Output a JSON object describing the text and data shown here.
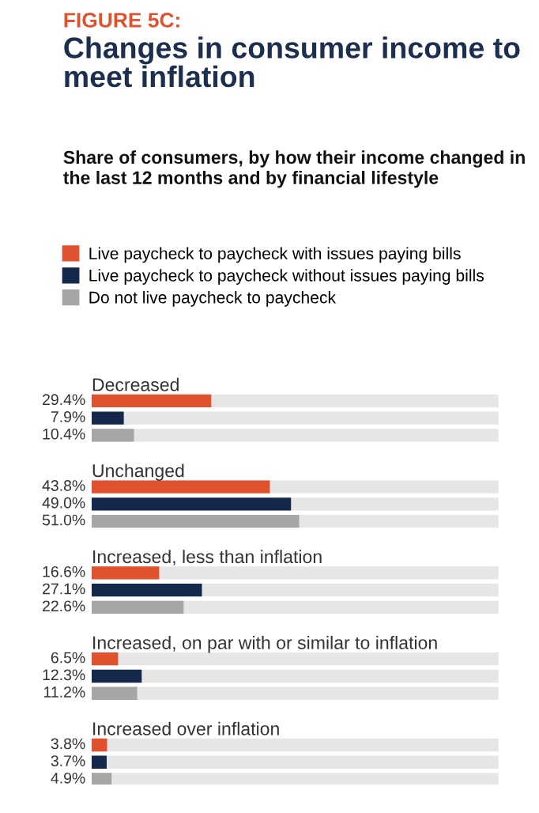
{
  "chart_data": {
    "type": "bar",
    "orientation": "horizontal",
    "title": "Changes in consumer income to meet inflation",
    "subtitle": "Share of consumers, by how their income changed in the last 12 months and by financial lifestyle",
    "annotations": [
      "FIGURE 5C:"
    ],
    "categories": [
      "Decreased",
      "Unchanged",
      "Increased, less than inflation",
      "Increased, on par with or similar to inflation",
      "Increased over inflation"
    ],
    "series": [
      {
        "name": "Live paycheck to paycheck with issues paying bills",
        "color": "#e0522e",
        "values": [
          29.4,
          43.8,
          16.6,
          6.5,
          3.8
        ],
        "value_labels": [
          "29.4%",
          "43.8%",
          "16.6%",
          "6.5%",
          "3.8%"
        ]
      },
      {
        "name": "Live paycheck to paycheck without issues paying bills",
        "color": "#14284b",
        "values": [
          7.9,
          49.0,
          27.1,
          12.3,
          3.7
        ],
        "value_labels": [
          "7.9%",
          "49.0%",
          "27.1%",
          "12.3%",
          "3.7%"
        ]
      },
      {
        "name": "Do not live paycheck to paycheck",
        "color": "#a6a6a6",
        "values": [
          10.4,
          51.0,
          22.6,
          11.2,
          4.9
        ],
        "value_labels": [
          "10.4%",
          "51.0%",
          "22.6%",
          "11.2%",
          "4.9%"
        ]
      }
    ],
    "xlim": [
      0,
      100
    ],
    "legend": "top left"
  }
}
